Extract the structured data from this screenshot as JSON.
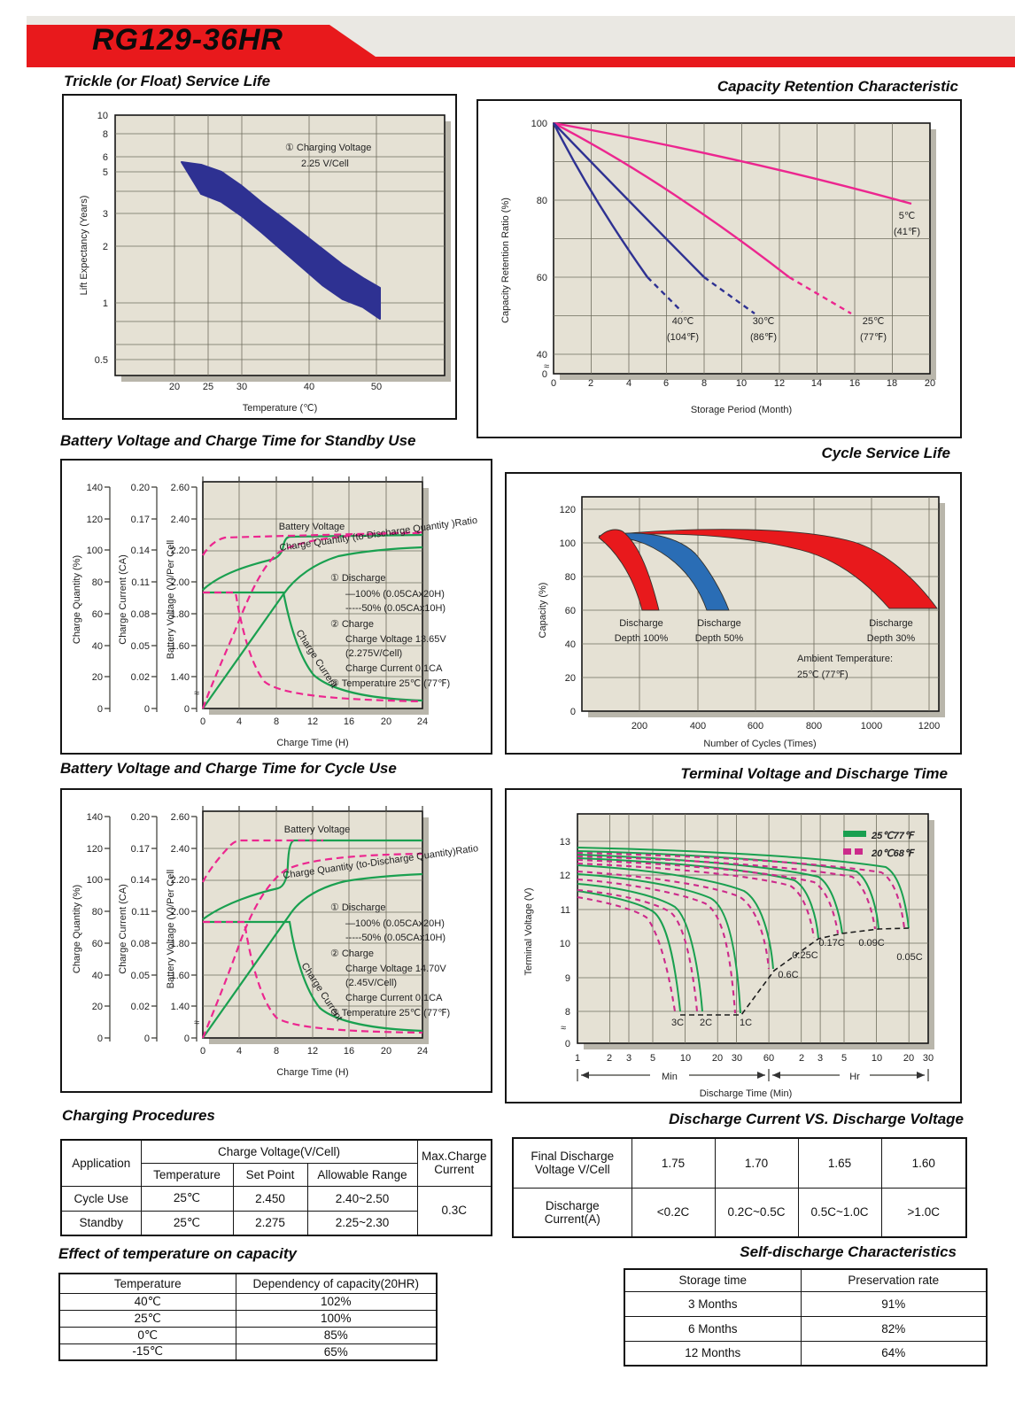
{
  "header": {
    "model": "RG129-36HR"
  },
  "sections": {
    "trickle": {
      "heading": "Trickle (or Float) Service Life"
    },
    "retention": {
      "heading": "Capacity Retention Characteristic"
    },
    "standby": {
      "heading": "Battery Voltage and Charge Time for Standby Use"
    },
    "cycle_life": {
      "heading": "Cycle Service Life"
    },
    "cycle_charge": {
      "heading": "Battery Voltage and Charge Time for Cycle Use"
    },
    "terminal": {
      "heading": "Terminal Voltage and Discharge Time"
    },
    "charging_procedures": {
      "heading": "Charging Procedures",
      "col_application": "Application",
      "col_charge_voltage": "Charge Voltage(V/Cell)",
      "col_temperature": "Temperature",
      "col_set_point": "Set Point",
      "col_allowable": "Allowable Range",
      "col_max_charge": "Max.Charge Current",
      "rows": [
        {
          "app": "Cycle Use",
          "temp": "25℃",
          "set": "2.450",
          "range": "2.40~2.50"
        },
        {
          "app": "Standby",
          "temp": "25℃",
          "set": "2.275",
          "range": "2.25~2.30"
        }
      ],
      "max_charge_current": "0.3C"
    },
    "discharge_cv": {
      "heading": "Discharge Current VS. Discharge Voltage",
      "row1_label": "Final Discharge Voltage V/Cell",
      "row1": [
        "1.75",
        "1.70",
        "1.65",
        "1.60"
      ],
      "row2_label": "Discharge Current(A)",
      "row2": [
        "<0.2C",
        "0.2C~0.5C",
        "0.5C~1.0C",
        ">1.0C"
      ]
    },
    "temp_capacity": {
      "heading": "Effect of temperature on capacity",
      "cols": [
        "Temperature",
        "Dependency of capacity(20HR)"
      ],
      "rows": [
        [
          "40℃",
          "102%"
        ],
        [
          "25℃",
          "100%"
        ],
        [
          "0℃",
          "85%"
        ],
        [
          "-15℃",
          "65%"
        ]
      ]
    },
    "self_discharge": {
      "heading": "Self-discharge Characteristics",
      "cols": [
        "Storage time",
        "Preservation rate"
      ],
      "rows": [
        [
          "3 Months",
          "91%"
        ],
        [
          "6 Months",
          "82%"
        ],
        [
          "12 Months",
          "64%"
        ]
      ]
    }
  },
  "chart_data": [
    {
      "type": "area",
      "title": "Trickle (or Float) Service Life",
      "xlabel": "Temperature (℃)",
      "ylabel": "Lift Expectancy (Years)",
      "x_scale": "linear",
      "y_scale": "log",
      "xticks": [
        "20",
        "25",
        "30",
        "40",
        "50"
      ],
      "yticks": [
        "10",
        "8",
        "6",
        "5",
        "3",
        "2",
        "1",
        "0.5"
      ],
      "ylim": [
        0.4,
        10
      ],
      "annotation1": "① Charging Voltage",
      "annotation2": "2.25 V/Cell",
      "series": [
        {
          "name": "life-expectancy-band",
          "color": "#2e3192",
          "x": [
            21,
            25,
            30,
            35,
            40,
            45,
            50
          ],
          "y_upper": [
            5.6,
            5.2,
            4.2,
            2.9,
            2.0,
            1.5,
            1.2
          ],
          "y_lower": [
            4.05,
            3.8,
            2.9,
            2.1,
            1.45,
            1.05,
            0.82
          ]
        }
      ]
    },
    {
      "type": "line",
      "title": "Capacity Retention Characteristic",
      "xlabel": "Storage Period (Month)",
      "ylabel": "Capacity Retention Ratio (%)",
      "xticks": [
        "0",
        "2",
        "4",
        "6",
        "8",
        "10",
        "12",
        "14",
        "16",
        "18",
        "20"
      ],
      "yticks": [
        "100",
        "80",
        "60",
        "40",
        "0"
      ],
      "xlim": [
        0,
        20
      ],
      "ylim": [
        0,
        100
      ],
      "axis_break": "between 0 and 40",
      "series": [
        {
          "name": "5C",
          "label1": "5℃",
          "label2": "(41℉)",
          "color": "#ec268f",
          "style": "solid",
          "x": [
            0,
            19
          ],
          "y": [
            100,
            79
          ]
        },
        {
          "name": "25C",
          "label1": "25℃",
          "label2": "(77℉)",
          "color": "#ec268f",
          "style": "solid-then-dashed",
          "x": [
            0,
            6,
            12.5,
            15.8
          ],
          "y": [
            100,
            84,
            60,
            50
          ]
        },
        {
          "name": "30C",
          "label1": "30℃",
          "label2": "(86℉)",
          "color": "#2e3192",
          "style": "solid-then-dashed",
          "x": [
            0,
            4,
            8,
            10.7
          ],
          "y": [
            100,
            82,
            60,
            50
          ]
        },
        {
          "name": "40C",
          "label1": "40℃",
          "label2": "(104℉)",
          "color": "#2e3192",
          "style": "solid-then-dashed",
          "x": [
            0,
            2.5,
            5,
            6.8
          ],
          "y": [
            100,
            81,
            60,
            51
          ]
        }
      ]
    },
    {
      "type": "area",
      "title": "Cycle Service Life",
      "xlabel": "Number of Cycles (Times)",
      "ylabel": "Capacity (%)",
      "xticks": [
        "200",
        "400",
        "600",
        "800",
        "1000",
        "1200"
      ],
      "yticks": [
        "120",
        "100",
        "80",
        "60",
        "40",
        "20",
        "0"
      ],
      "note1": "Ambient Temperature:",
      "note2": "25℃ (77℉)",
      "series": [
        {
          "name": "depth-100",
          "label1": "Discharge",
          "label2": "Depth 100%",
          "color": "#e8191c",
          "peak_capacity": 107,
          "end_capacity": 60,
          "end_cycles": [
            200,
            270
          ]
        },
        {
          "name": "depth-50",
          "label1": "Discharge",
          "label2": "Depth 50%",
          "color": "#2a6db5",
          "peak_capacity": 106,
          "end_capacity": 60,
          "end_cycles": [
            430,
            510
          ]
        },
        {
          "name": "depth-30",
          "label1": "Discharge",
          "label2": "Depth 30%",
          "color": "#e8191c",
          "peak_capacity": 107,
          "end_capacity": 60,
          "end_cycles": [
            1060,
            1230
          ]
        }
      ]
    },
    {
      "type": "line",
      "title": "Battery Voltage and Charge Time for Standby Use",
      "xlabel": "Charge Time (H)",
      "xticks": [
        "0",
        "4",
        "8",
        "12",
        "16",
        "20",
        "24"
      ],
      "axes": {
        "quantity": {
          "label": "Charge Quantity (%)",
          "ticks": [
            "140",
            "120",
            "100",
            "80",
            "60",
            "40",
            "20",
            "0"
          ]
        },
        "current": {
          "label": "Charge Current (CA)",
          "ticks": [
            "0.20",
            "0.17",
            "0.14",
            "0.11",
            "0.08",
            "0.05",
            "0.02",
            "0"
          ]
        },
        "voltage": {
          "label": "Battery Voltage (V)/Per Cell",
          "ticks": [
            "2.60",
            "2.40",
            "2.20",
            "2.00",
            "1.80",
            "1.60",
            "1.40",
            "0"
          ]
        }
      },
      "curve_labels": {
        "voltage": "Battery Voltage",
        "quantity": "Charge Quantity (to-Discharge Quantity )Ratio",
        "current": "Charge Current"
      },
      "notes": [
        "① Discharge",
        "—100% (0.05CAx20H)",
        "-----50% (0.05CAx10H)",
        "② Charge",
        "Charge Voltage 13.65V",
        "(2.275V/Cell)",
        "Charge Current 0.1CA",
        "③ Temperature 25℃ (77℉)"
      ],
      "series": [
        {
          "name": "battery-voltage-100",
          "unit": "V/cell",
          "style": "solid-green",
          "x": [
            0,
            2,
            4,
            6,
            7.5,
            8,
            24
          ],
          "y": [
            1.95,
            2.05,
            2.1,
            2.13,
            2.25,
            2.285,
            2.3
          ]
        },
        {
          "name": "battery-voltage-50",
          "unit": "V/cell",
          "style": "dashed-pink",
          "x": [
            0,
            1,
            2,
            4,
            24
          ],
          "y": [
            2.17,
            2.22,
            2.26,
            2.29,
            2.31
          ]
        },
        {
          "name": "charge-current-100",
          "unit": "CA",
          "style": "solid-green",
          "x": [
            0,
            8.8,
            12,
            16,
            20,
            24
          ],
          "y": [
            0.1,
            0.1,
            0.045,
            0.015,
            0.006,
            0.004
          ]
        },
        {
          "name": "charge-current-50",
          "unit": "CA",
          "style": "dashed-pink",
          "x": [
            0,
            3.6,
            6,
            8,
            12,
            24
          ],
          "y": [
            0.1,
            0.1,
            0.04,
            0.015,
            0.005,
            0.003
          ]
        },
        {
          "name": "charge-quantity-100",
          "unit": "%",
          "style": "solid-green",
          "x": [
            0,
            8.8,
            12,
            16,
            20,
            24
          ],
          "y": [
            0,
            72,
            88,
            97,
            101,
            103
          ]
        },
        {
          "name": "charge-quantity-50",
          "unit": "%",
          "style": "dashed-pink",
          "x": [
            0,
            2,
            4,
            6,
            8,
            12,
            24
          ],
          "y": [
            0,
            22,
            52,
            80,
            95,
            105,
            110
          ]
        }
      ]
    },
    {
      "type": "line",
      "title": "Battery Voltage and Charge Time for Cycle Use",
      "xlabel": "Charge Time (H)",
      "xticks": [
        "0",
        "4",
        "8",
        "12",
        "16",
        "20",
        "24"
      ],
      "axes": {
        "quantity": {
          "label": "Charge Quantity (%)",
          "ticks": [
            "140",
            "120",
            "100",
            "80",
            "60",
            "40",
            "20",
            "0"
          ]
        },
        "current": {
          "label": "Charge Current (CA)",
          "ticks": [
            "0.20",
            "0.17",
            "0.14",
            "0.11",
            "0.08",
            "0.05",
            "0.02",
            "0"
          ]
        },
        "voltage": {
          "label": "Battery Voltage (V)/Per Cell",
          "ticks": [
            "2.60",
            "2.40",
            "2.20",
            "2.00",
            "1.80",
            "1.60",
            "1.40",
            "0"
          ]
        }
      },
      "curve_labels": {
        "voltage": "Battery Voltage",
        "quantity": "Charge Quantity (to-Discharge Quantity)Ratio",
        "current": "Charge Current"
      },
      "notes": [
        "① Discharge",
        "—100% (0.05CAx20H)",
        "-----50% (0.05CAx10H)",
        "② Charge",
        "Charge Voltage 14.70V",
        "(2.45V/Cell)",
        "Charge Current 0.1CA",
        "③ Temperature 25℃ (77℉)"
      ],
      "series": [
        {
          "name": "battery-voltage-100",
          "unit": "V/cell",
          "style": "solid-green",
          "x": [
            0,
            2,
            4,
            8,
            9,
            9.5,
            24
          ],
          "y": [
            1.95,
            2.07,
            2.12,
            2.17,
            2.3,
            2.45,
            2.45
          ]
        },
        {
          "name": "battery-voltage-50",
          "unit": "V/cell",
          "style": "dashed-pink",
          "x": [
            0,
            2,
            4,
            4.7,
            24
          ],
          "y": [
            2.1,
            2.25,
            2.4,
            2.45,
            2.45
          ]
        },
        {
          "name": "charge-current-100",
          "unit": "CA",
          "style": "solid-green",
          "x": [
            0,
            9.5,
            12,
            16,
            20,
            24
          ],
          "y": [
            0.1,
            0.1,
            0.05,
            0.015,
            0.006,
            0.004
          ]
        },
        {
          "name": "charge-current-50",
          "unit": "CA",
          "style": "dashed-pink",
          "x": [
            0,
            4.6,
            7,
            9,
            12,
            24
          ],
          "y": [
            0.1,
            0.1,
            0.04,
            0.012,
            0.005,
            0.003
          ]
        },
        {
          "name": "charge-quantity-100",
          "unit": "%",
          "style": "solid-green",
          "x": [
            0,
            9.5,
            12,
            16,
            20,
            24
          ],
          "y": [
            0,
            78,
            90,
            99,
            103,
            105
          ]
        },
        {
          "name": "charge-quantity-50",
          "unit": "%",
          "style": "dashed-pink",
          "x": [
            0,
            2,
            4,
            6,
            8,
            12,
            24
          ],
          "y": [
            0,
            25,
            58,
            85,
            100,
            110,
            115
          ]
        }
      ]
    },
    {
      "type": "line",
      "title": "Terminal Voltage and Discharge Time",
      "xlabel": "Discharge Time (Min)",
      "ylabel": "Terminal Voltage (V)",
      "x_scale": "log",
      "yticks": [
        "13",
        "12",
        "11",
        "10",
        "9",
        "8",
        "0"
      ],
      "xticks": [
        "1",
        "2",
        "3",
        "5",
        "10",
        "20",
        "30",
        "60",
        "2",
        "3",
        "5",
        "10",
        "20",
        "30"
      ],
      "x_units": {
        "minutes_span": "Min",
        "hours_span": "Hr"
      },
      "legend": [
        {
          "label": "25℃77℉",
          "style": "solid",
          "color": "#1aa050"
        },
        {
          "label": "20℃68℉",
          "style": "dashed",
          "color": "#cc2a8b"
        }
      ],
      "series": [
        {
          "rate": "3C",
          "plateau_v": 11.6,
          "end_min": 9
        },
        {
          "rate": "2C",
          "plateau_v": 11.8,
          "end_min": 14.5
        },
        {
          "rate": "1C",
          "plateau_v": 12.1,
          "end_min": 33
        },
        {
          "rate": "0.6C",
          "plateau_v": 12.35,
          "end_min": 66
        },
        {
          "rate": "0.25C",
          "plateau_v": 12.55,
          "end_min": 174
        },
        {
          "rate": "0.17C",
          "plateau_v": 12.65,
          "end_min": 288
        },
        {
          "rate": "0.09C",
          "plateau_v": 12.75,
          "end_min": 630
        },
        {
          "rate": "0.05C",
          "plateau_v": 12.85,
          "end_min": 1200
        }
      ],
      "c_labels": [
        "3C",
        "2C",
        "1C",
        "0.6C",
        "0.25C",
        "0.17C",
        "0.09C",
        "0.05C"
      ]
    }
  ]
}
